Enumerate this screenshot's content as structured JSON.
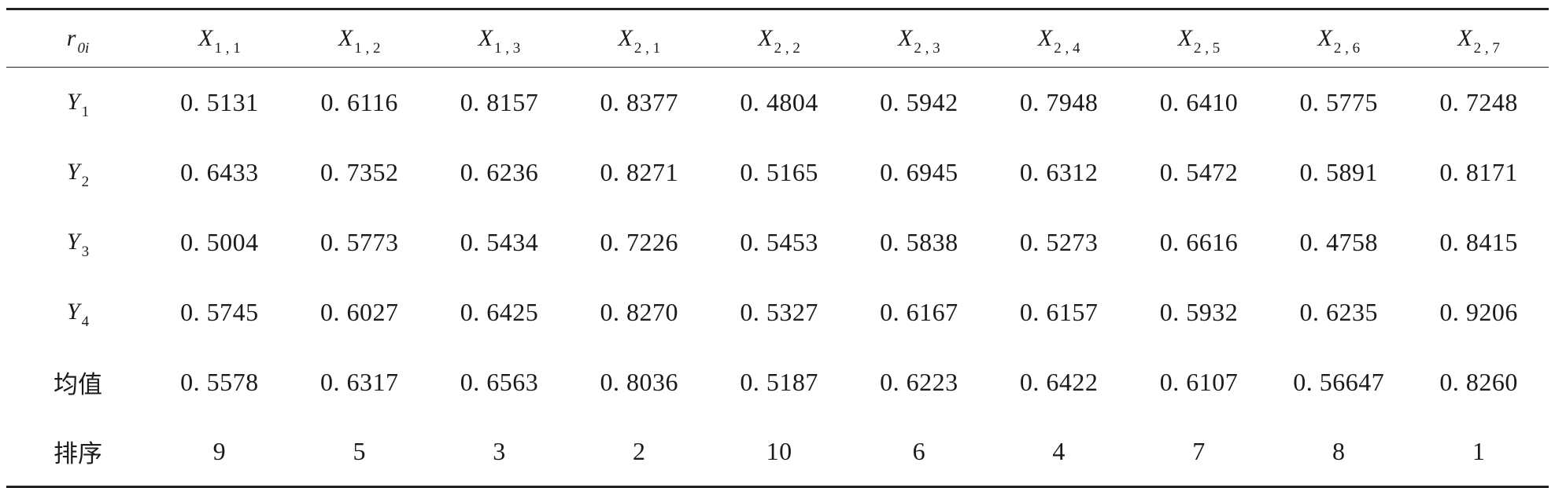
{
  "header": {
    "corner": {
      "main": "r",
      "sub": "0i"
    },
    "columns": [
      {
        "main": "X",
        "sub": "1 , 1"
      },
      {
        "main": "X",
        "sub": "1 , 2"
      },
      {
        "main": "X",
        "sub": "1 , 3"
      },
      {
        "main": "X",
        "sub": "2 , 1"
      },
      {
        "main": "X",
        "sub": "2 , 2"
      },
      {
        "main": "X",
        "sub": "2 , 3"
      },
      {
        "main": "X",
        "sub": "2 , 4"
      },
      {
        "main": "X",
        "sub": "2 , 5"
      },
      {
        "main": "X",
        "sub": "2 , 6"
      },
      {
        "main": "X",
        "sub": "2 , 7"
      }
    ]
  },
  "rows": [
    {
      "label": {
        "main": "Y",
        "sub": "1"
      },
      "values": [
        "0. 5131",
        "0. 6116",
        "0. 8157",
        "0. 8377",
        "0. 4804",
        "0. 5942",
        "0. 7948",
        "0. 6410",
        "0. 5775",
        "0. 7248"
      ]
    },
    {
      "label": {
        "main": "Y",
        "sub": "2"
      },
      "values": [
        "0. 6433",
        "0. 7352",
        "0. 6236",
        "0. 8271",
        "0. 5165",
        "0. 6945",
        "0. 6312",
        "0. 5472",
        "0. 5891",
        "0. 8171"
      ]
    },
    {
      "label": {
        "main": "Y",
        "sub": "3"
      },
      "values": [
        "0. 5004",
        "0. 5773",
        "0. 5434",
        "0. 7226",
        "0. 5453",
        "0. 5838",
        "0. 5273",
        "0. 6616",
        "0. 4758",
        "0. 8415"
      ]
    },
    {
      "label": {
        "main": "Y",
        "sub": "4"
      },
      "values": [
        "0. 5745",
        "0. 6027",
        "0. 6425",
        "0. 8270",
        "0. 5327",
        "0. 6167",
        "0. 6157",
        "0. 5932",
        "0. 6235",
        "0. 9206"
      ]
    },
    {
      "label": {
        "text": "均值"
      },
      "values": [
        "0. 5578",
        "0. 6317",
        "0. 6563",
        "0. 8036",
        "0. 5187",
        "0. 6223",
        "0. 6422",
        "0. 6107",
        "0. 56647",
        "0. 8260"
      ]
    },
    {
      "label": {
        "text": "排序"
      },
      "values": [
        "9",
        "5",
        "3",
        "2",
        "10",
        "6",
        "4",
        "7",
        "8",
        "1"
      ]
    }
  ]
}
